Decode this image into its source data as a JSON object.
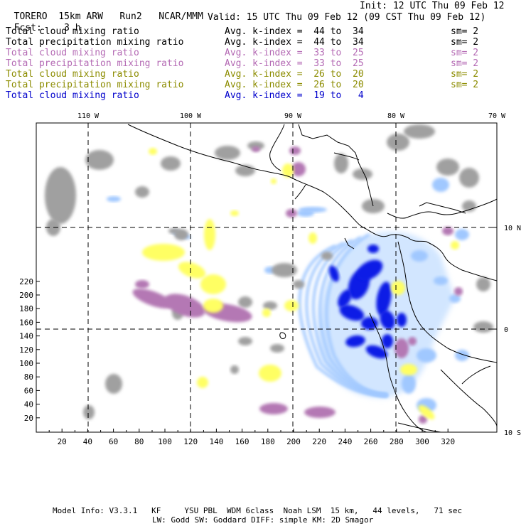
{
  "header": {
    "model": "TORERO",
    "resolution": "15km ARW",
    "run": "Run2",
    "org": "NCAR/MMM",
    "init": "Init: 12 UTC Thu 09 Feb 12",
    "fcst_label": "Fcst:",
    "fcst_value": "3 h",
    "valid": "Valid: 15 UTC Thu 09 Feb 12 (09 CST Thu 09 Feb 12)"
  },
  "legend": [
    {
      "name": "Total cloud mixing ratio",
      "avg": "Avg. k-index =  44 to  34",
      "sm": "sm= 2",
      "color": "#000000"
    },
    {
      "name": "Total precipitation mixing ratio",
      "avg": "Avg. k-index =  44 to  34",
      "sm": "sm= 2",
      "color": "#000000"
    },
    {
      "name": "Total cloud mixing ratio",
      "avg": "Avg. k-index =  33 to  25",
      "sm": "sm= 2",
      "color": "#b46ab4"
    },
    {
      "name": "Total precipitation mixing ratio",
      "avg": "Avg. k-index =  33 to  25",
      "sm": "sm= 2",
      "color": "#b46ab4"
    },
    {
      "name": "Total cloud mixing ratio",
      "avg": "Avg. k-index =  26 to  20",
      "sm": "sm= 2",
      "color": "#8c8c00"
    },
    {
      "name": "Total precipitation mixing ratio",
      "avg": "Avg. k-index =  26 to  20",
      "sm": "sm= 2",
      "color": "#8c8c00"
    },
    {
      "name": "Total cloud mixing ratio",
      "avg": "Avg. k-index =  19 to   4",
      "sm": "",
      "color": "#0000cc"
    }
  ],
  "map": {
    "top_lon_labels": [
      "110 W",
      "100 W",
      "90 W",
      "80 W",
      "70 W"
    ],
    "right_lat_labels": [
      "10 N",
      "0",
      "10 S"
    ],
    "x_ticks": [
      "20",
      "40",
      "60",
      "80",
      "100",
      "120",
      "140",
      "160",
      "180",
      "200",
      "220",
      "240",
      "260",
      "280",
      "300",
      "320"
    ],
    "y_ticks": [
      "220",
      "200",
      "180",
      "160",
      "140",
      "120",
      "100",
      "80",
      "60",
      "40",
      "20"
    ],
    "colors": {
      "gray": "#a0a0a0",
      "purple": "#b478b4",
      "yellow": "#ffff64",
      "blue": "#0a1ee6",
      "light_blue": "#a0c8ff",
      "very_light_blue": "#d2e6ff"
    }
  },
  "footer": {
    "line1": "Model Info: V3.3.1   KF     YSU PBL  WDM 6class  Noah LSM  15 km,   44 levels,   71 sec",
    "line2": "LW: Godd SW: Goddard DIFF: simple KM: 2D Smagor"
  }
}
